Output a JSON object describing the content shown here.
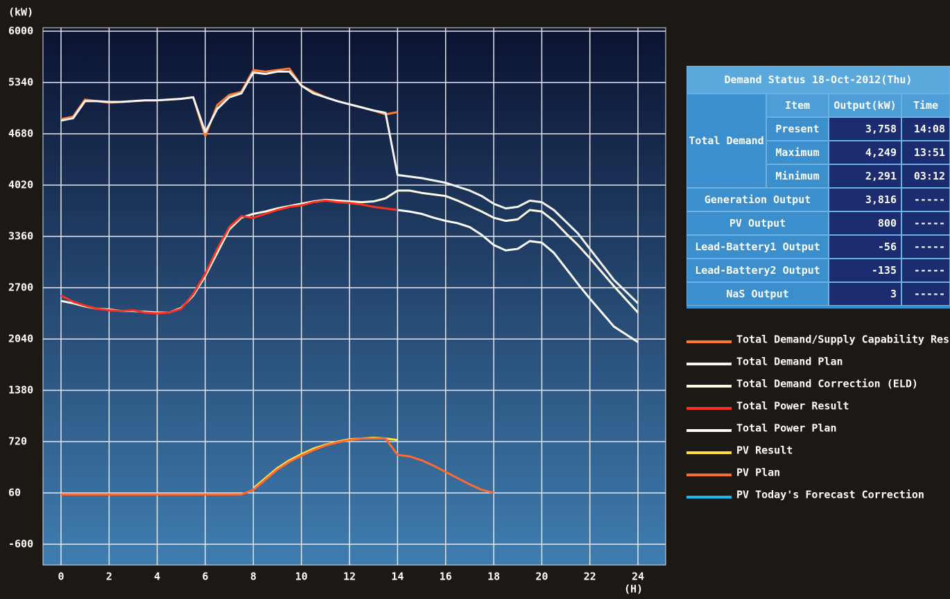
{
  "chart_data": {
    "type": "line",
    "y_label": "(kW)",
    "x_label": "(H)",
    "xlim": [
      0,
      24
    ],
    "xticks": [
      0,
      2,
      4,
      6,
      8,
      10,
      12,
      14,
      16,
      18,
      20,
      22,
      24
    ],
    "ylim": [
      -600,
      6000
    ],
    "yticks": [
      -600,
      60,
      720,
      1380,
      2040,
      2700,
      3360,
      4020,
      4680,
      5340,
      6000
    ],
    "grid": true,
    "legend": "right",
    "x": [
      0,
      0.5,
      1,
      1.5,
      2,
      2.5,
      3,
      3.5,
      4,
      4.5,
      5,
      5.5,
      6,
      6.5,
      7,
      7.5,
      8,
      8.5,
      9,
      9.5,
      10,
      10.5,
      11,
      11.5,
      12,
      12.5,
      13,
      13.5,
      14,
      14.5,
      15,
      15.5,
      16,
      16.5,
      17,
      17.5,
      18,
      18.5,
      19,
      19.5,
      20,
      20.5,
      21,
      21.5,
      22,
      22.5,
      23,
      23.5,
      24
    ],
    "series": [
      {
        "name": "Total Demand/Supply Capability Result",
        "color": "#ff7b2a",
        "values": [
          4870,
          4900,
          5120,
          5100,
          5080,
          5090,
          5100,
          5110,
          5110,
          5120,
          5130,
          5150,
          4650,
          5050,
          5180,
          5220,
          5500,
          5480,
          5500,
          5520,
          5300,
          5220,
          5150,
          5100,
          5060,
          5020,
          4980,
          4930,
          4960,
          null,
          null,
          null,
          null,
          null,
          null,
          null,
          null,
          null,
          null,
          null,
          null,
          null,
          null,
          null,
          null,
          null,
          null,
          null,
          null
        ]
      },
      {
        "name": "Total Demand Plan",
        "color": "#f6f6f6",
        "values": [
          4850,
          4880,
          5100,
          5100,
          5090,
          5090,
          5100,
          5110,
          5110,
          5120,
          5130,
          5150,
          4700,
          5000,
          5150,
          5200,
          5470,
          5450,
          5480,
          5480,
          5300,
          5200,
          5150,
          5100,
          5060,
          5020,
          4980,
          4950,
          4150,
          4130,
          4110,
          4080,
          4050,
          4000,
          3950,
          3880,
          3780,
          3720,
          3740,
          3820,
          3800,
          3700,
          3550,
          3400,
          3200,
          3000,
          2800,
          2650,
          2500
        ]
      },
      {
        "name": "Total Demand Correction (ELD)",
        "color": "#fffbe6",
        "values": [
          2530,
          2500,
          2460,
          2430,
          2420,
          2400,
          2400,
          2390,
          2380,
          2380,
          2440,
          2600,
          2850,
          3150,
          3450,
          3600,
          3650,
          3680,
          3720,
          3750,
          3780,
          3810,
          3830,
          3820,
          3810,
          3800,
          3810,
          3850,
          3950,
          3950,
          3920,
          3900,
          3880,
          3820,
          3750,
          3680,
          3600,
          3560,
          3580,
          3700,
          3680,
          3560,
          3400,
          3250,
          3080,
          2900,
          2720,
          2550,
          2380
        ]
      },
      {
        "name": "Total Power Result",
        "color": "#ff3020",
        "values": [
          2600,
          2520,
          2470,
          2430,
          2410,
          2400,
          2410,
          2380,
          2370,
          2380,
          2430,
          2620,
          2880,
          3200,
          3480,
          3620,
          3600,
          3650,
          3700,
          3740,
          3760,
          3800,
          3820,
          3800,
          3790,
          3770,
          3740,
          3720,
          3700,
          null,
          null,
          null,
          null,
          null,
          null,
          null,
          null,
          null,
          null,
          null,
          null,
          null,
          null,
          null,
          null,
          null,
          null,
          null,
          null
        ]
      },
      {
        "name": "Total Power Plan",
        "color": "#ffffff",
        "values": [
          null,
          null,
          null,
          null,
          null,
          null,
          null,
          null,
          null,
          null,
          null,
          null,
          null,
          null,
          null,
          null,
          null,
          null,
          null,
          null,
          null,
          null,
          null,
          null,
          null,
          null,
          null,
          null,
          3700,
          3680,
          3650,
          3600,
          3560,
          3530,
          3480,
          3380,
          3250,
          3180,
          3200,
          3300,
          3280,
          3150,
          2950,
          2750,
          2560,
          2380,
          2200,
          2100,
          2000
        ]
      },
      {
        "name": "PV Result",
        "color": "#ffe040",
        "values": [
          null,
          null,
          null,
          null,
          null,
          null,
          null,
          null,
          null,
          null,
          null,
          null,
          null,
          null,
          null,
          null,
          120,
          250,
          380,
          480,
          560,
          630,
          680,
          720,
          750,
          760,
          770,
          760,
          740,
          null,
          null,
          null,
          null,
          null,
          null,
          null,
          null,
          null,
          null,
          null,
          null,
          null,
          null,
          null,
          null,
          null,
          null,
          null,
          null
        ]
      },
      {
        "name": "PV Plan",
        "color": "#ff6a30",
        "values": [
          40,
          40,
          40,
          40,
          40,
          40,
          40,
          40,
          40,
          40,
          40,
          40,
          40,
          40,
          40,
          40,
          100,
          230,
          360,
          460,
          540,
          610,
          670,
          710,
          740,
          760,
          760,
          760,
          550,
          530,
          480,
          410,
          330,
          250,
          170,
          100,
          60,
          null,
          null,
          null,
          null,
          null,
          null,
          null,
          null,
          null,
          null,
          null,
          null
        ]
      },
      {
        "name": "PV Today's Forecast Correction",
        "color": "#18b8f0",
        "values": [
          null,
          null,
          null,
          null,
          null,
          null,
          null,
          null,
          null,
          null,
          null,
          null,
          null,
          null,
          null,
          null,
          null,
          null,
          null,
          null,
          null,
          null,
          null,
          null,
          null,
          null,
          null,
          null,
          null,
          null,
          null,
          null,
          null,
          null,
          null,
          null,
          null,
          null,
          null,
          null,
          null,
          null,
          null,
          null,
          null,
          null,
          null,
          null,
          null
        ]
      }
    ]
  },
  "status_table": {
    "title": "Demand Status 18-Oct-2012(Thu)",
    "headers": [
      "Item",
      "Output(kW)",
      "Time"
    ],
    "group": "Total Demand",
    "rows": [
      [
        "Present",
        "3,758",
        "14:08"
      ],
      [
        "Maximum",
        "4,249",
        "13:51"
      ],
      [
        "Minimum",
        "2,291",
        "03:12"
      ],
      [
        "Generation Output",
        "3,816",
        "-----"
      ],
      [
        "PV Output",
        "800",
        "-----"
      ],
      [
        "Lead-Battery1 Output",
        "-56",
        "-----"
      ],
      [
        "Lead-Battery2 Output",
        "-135",
        "-----"
      ],
      [
        "NaS Output",
        "3",
        "-----"
      ]
    ]
  }
}
